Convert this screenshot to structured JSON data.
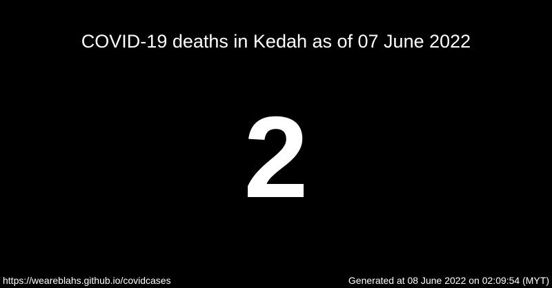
{
  "title": "COVID-19 deaths in Kedah as of 07 June 2022",
  "count": "2",
  "footer": {
    "url": "https://weareblahs.github.io/covidcases",
    "generated": "Generated at 08 June 2022 on 02:09:54 (MYT)"
  },
  "colors": {
    "background": "#000000",
    "text": "#ffffff"
  }
}
